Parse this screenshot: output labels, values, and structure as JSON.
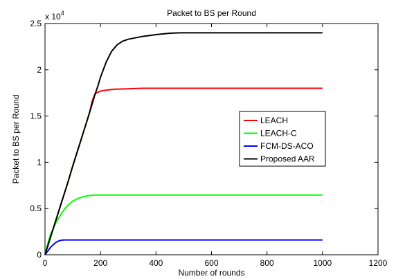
{
  "chart_data": {
    "type": "line",
    "title": "Packet to BS per Round",
    "xlabel": "Number of rounds",
    "ylabel": "Packet to BS per Round",
    "y_scale_label_base": "x 10",
    "y_scale_label_exponent": "4",
    "xlim": [
      0,
      1200
    ],
    "ylim": [
      0,
      2.5
    ],
    "xticks": [
      0,
      200,
      400,
      600,
      800,
      1000,
      1200
    ],
    "yticks": [
      0,
      0.5,
      1,
      1.5,
      2,
      2.5
    ],
    "xtick_labels": [
      "0",
      "200",
      "400",
      "600",
      "800",
      "1000",
      "1200"
    ],
    "ytick_labels": [
      "0",
      "0.5",
      "1",
      "1.5",
      "2",
      "2.5"
    ],
    "grid": false,
    "legend_position": "right",
    "series": [
      {
        "name": "LEACH",
        "color": "#ff0000",
        "x": [
          0,
          20,
          40,
          60,
          80,
          100,
          120,
          140,
          160,
          170,
          180,
          200,
          220,
          250,
          300,
          350,
          400,
          500,
          600,
          800,
          1000
        ],
        "y": [
          0,
          0.19,
          0.38,
          0.57,
          0.76,
          0.96,
          1.15,
          1.34,
          1.53,
          1.66,
          1.74,
          1.77,
          1.78,
          1.79,
          1.795,
          1.8,
          1.8,
          1.8,
          1.8,
          1.8,
          1.8
        ]
      },
      {
        "name": "LEACH-C",
        "color": "#00ff00",
        "x": [
          0,
          10,
          20,
          40,
          60,
          80,
          100,
          120,
          140,
          160,
          180,
          200,
          250,
          300,
          400,
          600,
          800,
          1000
        ],
        "y": [
          0,
          0.12,
          0.22,
          0.35,
          0.45,
          0.53,
          0.58,
          0.61,
          0.63,
          0.64,
          0.645,
          0.645,
          0.645,
          0.645,
          0.645,
          0.645,
          0.645,
          0.645
        ]
      },
      {
        "name": "FCM-DS-ACO",
        "color": "#0000ff",
        "x": [
          0,
          10,
          20,
          30,
          40,
          50,
          60,
          70,
          80,
          100,
          200,
          400,
          600,
          800,
          1000
        ],
        "y": [
          0,
          0.04,
          0.08,
          0.11,
          0.135,
          0.15,
          0.158,
          0.16,
          0.16,
          0.16,
          0.16,
          0.16,
          0.16,
          0.16,
          0.16
        ]
      },
      {
        "name": "Proposed AAR",
        "color": "#000000",
        "x": [
          0,
          20,
          40,
          60,
          80,
          100,
          120,
          140,
          160,
          170,
          180,
          190,
          200,
          220,
          240,
          260,
          280,
          300,
          350,
          400,
          450,
          490,
          600,
          800,
          1000
        ],
        "y": [
          0,
          0.19,
          0.38,
          0.57,
          0.76,
          0.96,
          1.15,
          1.34,
          1.53,
          1.63,
          1.73,
          1.82,
          1.92,
          2.08,
          2.2,
          2.27,
          2.31,
          2.33,
          2.36,
          2.38,
          2.395,
          2.4,
          2.4,
          2.4,
          2.4
        ]
      }
    ]
  }
}
